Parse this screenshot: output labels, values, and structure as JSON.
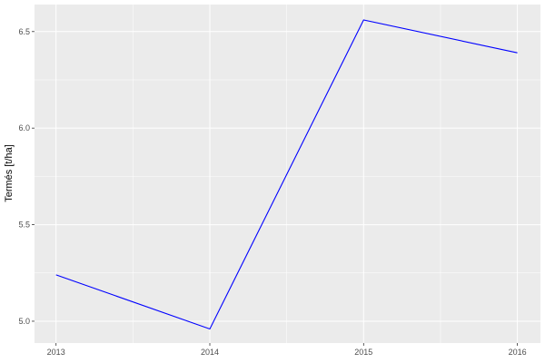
{
  "chart_data": {
    "type": "line",
    "title": "",
    "xlabel": "",
    "ylabel": "Termés [t/ha]",
    "x": [
      2013,
      2014,
      2015,
      2016
    ],
    "series": [
      {
        "values": [
          5.24,
          4.96,
          6.56,
          6.39
        ],
        "color": "#0000ff"
      }
    ],
    "xticks": [
      "2013",
      "2014",
      "2015",
      "2016"
    ],
    "yticks": [
      "5.0",
      "5.5",
      "6.0",
      "6.5"
    ],
    "xlim": [
      2012.86,
      2016.15
    ],
    "ylim": [
      4.887,
      6.64
    ],
    "grid": true,
    "panel_background": "#ebebeb",
    "legend": "none"
  }
}
